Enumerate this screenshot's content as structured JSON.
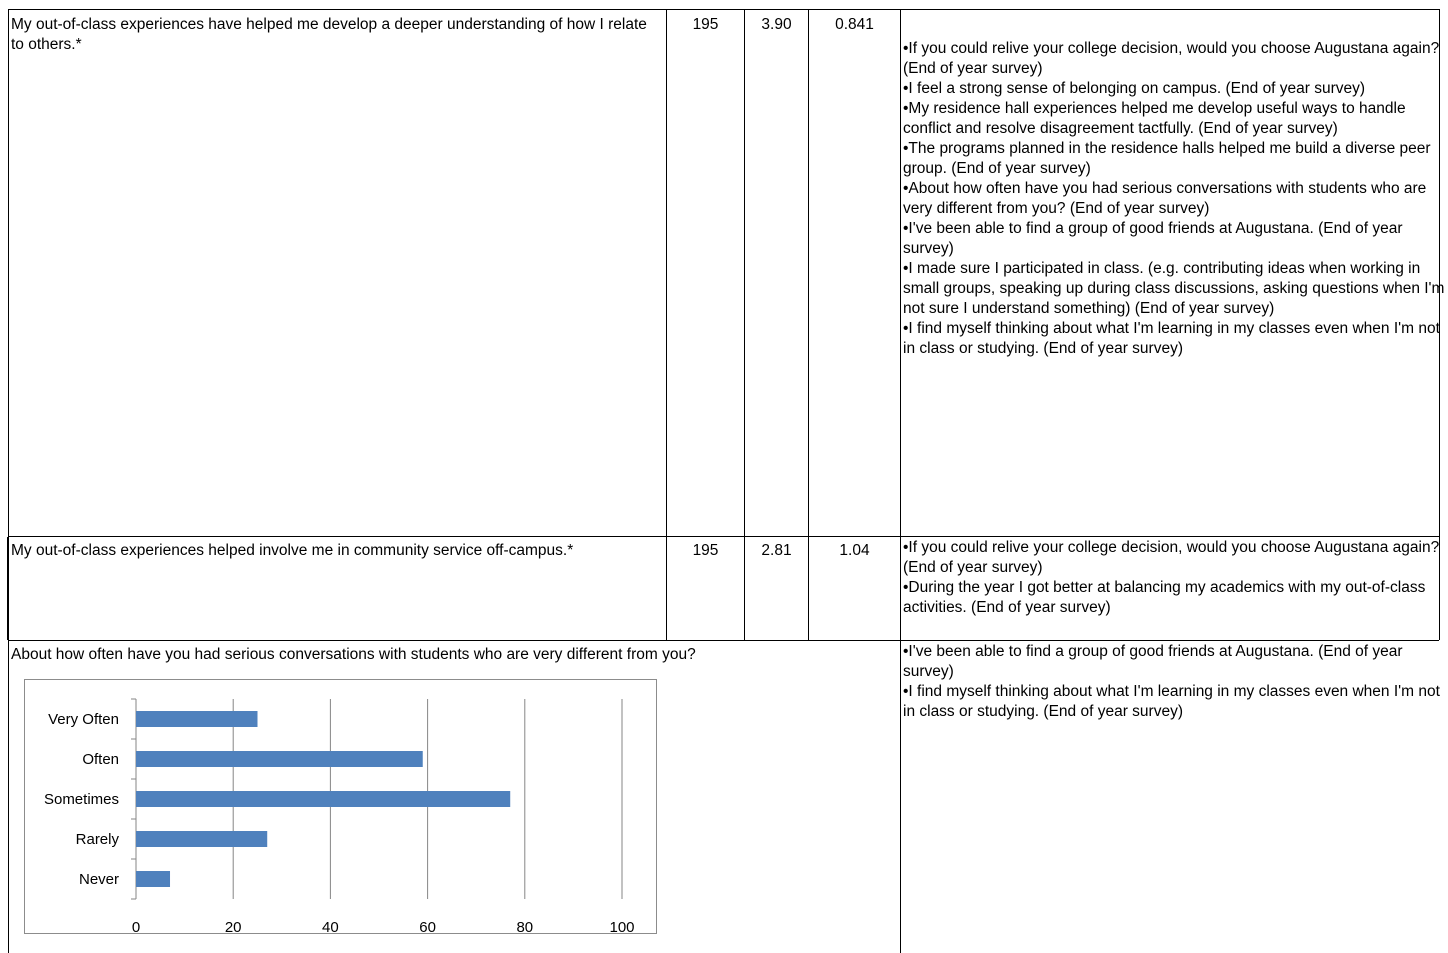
{
  "rows": [
    {
      "item": "My out-of-class experiences have helped me develop a deeper understanding of how I relate to others.*",
      "n": "195",
      "mean": "3.90",
      "sd": "0.841",
      "related": [
        "•If you could relive your college decision, would you choose Augustana again? (End of year survey)",
        "•I feel a strong sense of belonging on campus. (End of year survey)",
        "•My residence hall experiences helped me develop useful ways to handle conflict and resolve disagreement tactfully. (End of year survey)",
        "•The programs planned in the residence halls helped me build a diverse peer group. (End of year survey)",
        "•About how often have you had serious conversations with students who are very different from you? (End of year survey)",
        "•I've been able to find a group of good friends at Augustana. (End of year survey)",
        "•I made sure I participated in class.  (e.g. contributing ideas when working in small groups, speaking up during class discussions, asking questions when I'm not sure I understand something) (End of year survey)",
        "•I find myself thinking about what I'm learning in my classes even when I'm not in class or studying. (End of year survey)"
      ]
    },
    {
      "item": "My out-of-class experiences helped involve me in community service off-campus.*",
      "n": "195",
      "mean": "2.81",
      "sd": "1.04",
      "related": [
        "•If you could relive your college decision, would you choose Augustana again? (End of year survey)",
        "•During the year I got better at balancing my academics with my out-of-class activities. (End of year survey)"
      ]
    }
  ],
  "chart_section": {
    "question": "About how often have you had serious conversations with students who are very different from you?",
    "related": [
      "•I've been able to find a group of good friends at Augustana. (End of year survey)",
      "•I find myself thinking about what I'm learning in my classes even when I'm not in class or studying. (End of year survey)"
    ]
  },
  "chart_data": {
    "type": "bar",
    "orientation": "horizontal",
    "categories": [
      "Very Often",
      "Often",
      "Sometimes",
      "Rarely",
      "Never"
    ],
    "values": [
      25,
      59,
      77,
      27,
      7
    ],
    "xticks": [
      "0",
      "20",
      "40",
      "60",
      "80",
      "100"
    ],
    "xlim": [
      0,
      100
    ],
    "grid": true,
    "bar_color": "#4f81bd",
    "gridline_color": "#868686"
  }
}
